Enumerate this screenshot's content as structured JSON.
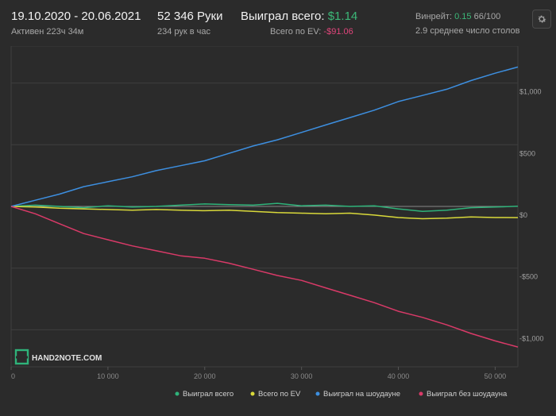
{
  "header": {
    "date_range": "19.10.2020 - 20.06.2021",
    "active_time": "Активен 223ч 34м",
    "hands": "52 346 Руки",
    "hands_per_hour": "234 рук в час",
    "won_total_label": "Выиграл всего:",
    "won_total_value": "$1.14",
    "ev_total_label": "Всего по EV:",
    "ev_total_value": "-$91.06",
    "winrate_label": "Винрейт:",
    "winrate_value": "0.15",
    "winrate_suffix": "66/100",
    "avg_tables": "2.9 среднее число столов",
    "settings_icon": "gear-icon"
  },
  "logo_text": "HAND2NOTE.COM",
  "colors": {
    "won_total": "#2fb37a",
    "ev": "#d9d93a",
    "showdown": "#3d8fe0",
    "non_showdown": "#d93a68",
    "zero_line": "#8a8a8a",
    "grid": "#3f3f3f",
    "background": "#2b2b2b"
  },
  "chart_data": {
    "type": "line",
    "x_ticks": [
      0,
      10000,
      20000,
      30000,
      40000,
      50000
    ],
    "x_tick_labels": [
      "0",
      "10 000",
      "20 000",
      "30 000",
      "40 000",
      "50 000"
    ],
    "xlim": [
      0,
      52346
    ],
    "y_ticks": [
      1000,
      500,
      0,
      -500,
      -1000
    ],
    "y_tick_labels": [
      "$1,000",
      "$500",
      "$0",
      "-$500",
      "-$1,000"
    ],
    "ylim": [
      -1300,
      1300
    ],
    "grid": true,
    "legend_position": "bottom-right",
    "series": [
      {
        "name": "Выиграл всего",
        "x": [
          0,
          2500,
          5000,
          7500,
          10000,
          12500,
          15000,
          17500,
          20000,
          22500,
          25000,
          27500,
          30000,
          32500,
          35000,
          37500,
          40000,
          42500,
          45000,
          47500,
          50000,
          52346
        ],
        "values": [
          0,
          10,
          0,
          -10,
          5,
          -5,
          0,
          10,
          20,
          15,
          10,
          25,
          5,
          10,
          0,
          5,
          -20,
          -40,
          -30,
          -10,
          -5,
          1.14
        ]
      },
      {
        "name": "Всего по EV",
        "x": [
          0,
          2500,
          5000,
          7500,
          10000,
          12500,
          15000,
          17500,
          20000,
          22500,
          25000,
          27500,
          30000,
          32500,
          35000,
          37500,
          40000,
          42500,
          45000,
          47500,
          50000,
          52346
        ],
        "values": [
          0,
          -5,
          -15,
          -20,
          -25,
          -30,
          -25,
          -30,
          -35,
          -30,
          -40,
          -50,
          -55,
          -60,
          -55,
          -70,
          -90,
          -100,
          -95,
          -85,
          -90,
          -91.06
        ]
      },
      {
        "name": "Выиграл на шоудауне",
        "x": [
          0,
          2500,
          5000,
          7500,
          10000,
          12500,
          15000,
          17500,
          20000,
          22500,
          25000,
          27500,
          30000,
          32500,
          35000,
          37500,
          40000,
          42500,
          45000,
          47500,
          50000,
          52346
        ],
        "values": [
          0,
          50,
          100,
          160,
          200,
          240,
          290,
          330,
          370,
          430,
          490,
          540,
          600,
          660,
          720,
          780,
          850,
          900,
          950,
          1020,
          1080,
          1130
        ]
      },
      {
        "name": "Выиграл без шоудауна",
        "x": [
          0,
          2500,
          5000,
          7500,
          10000,
          12500,
          15000,
          17500,
          20000,
          22500,
          25000,
          27500,
          30000,
          32500,
          35000,
          37500,
          40000,
          42500,
          45000,
          47500,
          50000,
          52346
        ],
        "values": [
          0,
          -60,
          -140,
          -220,
          -270,
          -320,
          -360,
          -400,
          -420,
          -460,
          -510,
          -560,
          -600,
          -660,
          -720,
          -780,
          -850,
          -900,
          -960,
          -1030,
          -1090,
          -1140
        ]
      }
    ]
  }
}
